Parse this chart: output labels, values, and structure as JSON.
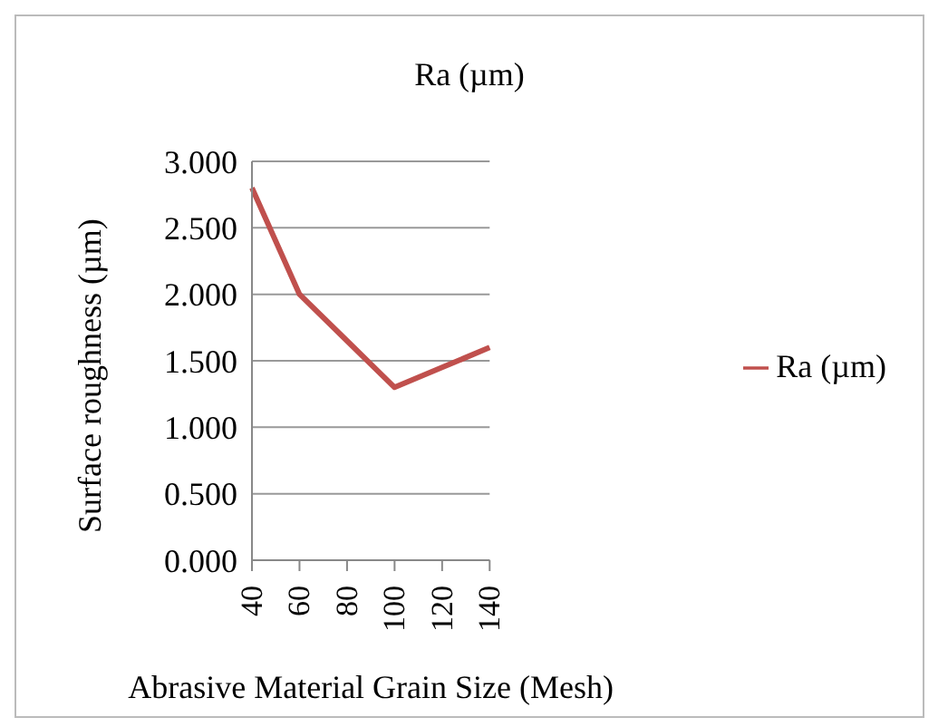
{
  "chart_data": {
    "type": "line",
    "title": "Ra (µm)",
    "xlabel": "Abrasive Material Grain Size (Mesh)",
    "ylabel": "Surface roughness (µm)",
    "categories": [
      "40",
      "60",
      "80",
      "100",
      "120",
      "140"
    ],
    "series": [
      {
        "name": "Ra (µm)",
        "color": "#c0504d",
        "values": [
          2.8,
          2.0,
          1.65,
          1.3,
          1.45,
          1.6
        ]
      }
    ],
    "ylim": [
      0,
      3
    ],
    "yticks": [
      {
        "value": 0,
        "label": "0.000"
      },
      {
        "value": 0.5,
        "label": "0.500"
      },
      {
        "value": 1,
        "label": "1.000"
      },
      {
        "value": 1.5,
        "label": "1.500"
      },
      {
        "value": 2,
        "label": "2.000"
      },
      {
        "value": 2.5,
        "label": "2.500"
      },
      {
        "value": 3,
        "label": "3.000"
      }
    ],
    "grid": "y",
    "legend": "right",
    "marker": "none",
    "line_style": "solid"
  }
}
